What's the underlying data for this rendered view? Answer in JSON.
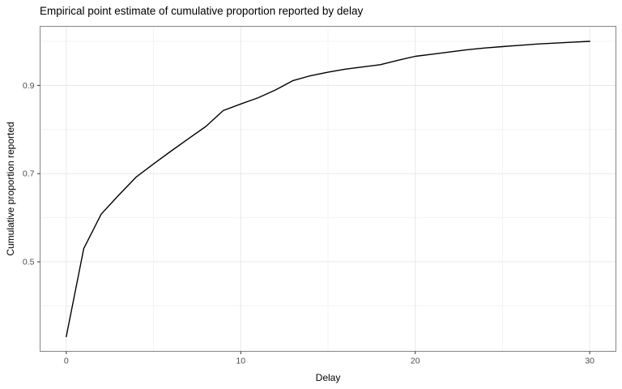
{
  "chart_data": {
    "type": "line",
    "title": "Empirical point estimate of cumulative proportion reported by delay",
    "xlabel": "Delay",
    "ylabel": "Cumulative proportion reported",
    "x": [
      0,
      1,
      2,
      3,
      4,
      5,
      6,
      7,
      8,
      9,
      10,
      11,
      12,
      13,
      14,
      15,
      16,
      17,
      18,
      19,
      20,
      21,
      22,
      23,
      24,
      25,
      26,
      27,
      28,
      29,
      30
    ],
    "values": [
      0.33,
      0.53,
      0.608,
      0.651,
      0.692,
      0.722,
      0.751,
      0.779,
      0.807,
      0.843,
      0.858,
      0.872,
      0.89,
      0.911,
      0.922,
      0.93,
      0.937,
      0.942,
      0.947,
      0.957,
      0.966,
      0.971,
      0.976,
      0.981,
      0.985,
      0.988,
      0.991,
      0.994,
      0.996,
      0.998,
      1.0
    ],
    "xlim": [
      -1.5,
      31.5
    ],
    "ylim": [
      0.297,
      1.034
    ],
    "x_ticks": [
      0,
      10,
      20,
      30
    ],
    "x_tick_labels": [
      "0",
      "10",
      "20",
      "30"
    ],
    "x_minor": [
      5,
      15,
      25
    ],
    "y_ticks": [
      0.5,
      0.7,
      0.9
    ],
    "y_tick_labels": [
      "0.5",
      "0.7",
      "0.9"
    ],
    "y_minor": [
      0.4,
      0.6,
      0.8,
      1.0
    ],
    "grid": true,
    "legend": "none",
    "colors": {
      "line": "#000000",
      "panel_border": "#858585",
      "grid_major": "#e8e8e8",
      "grid_minor": "#f3f3f3",
      "tick_mark": "#333333",
      "tick_label": "#4d4d4d",
      "background": "#ffffff"
    }
  }
}
